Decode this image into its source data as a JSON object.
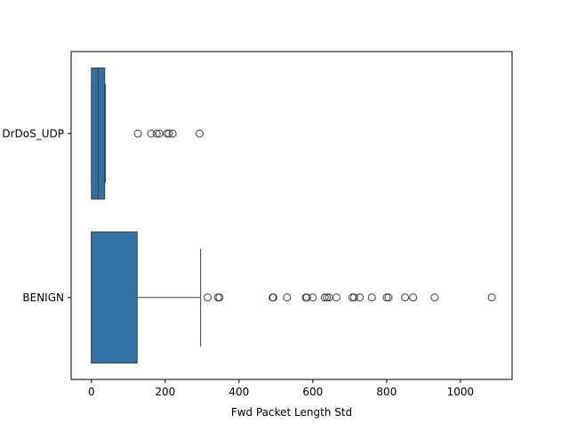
{
  "chart_data": {
    "type": "box",
    "orientation": "horizontal",
    "xlabel": "Fwd Packet Length Std",
    "ylabel": "",
    "xlim": [
      -55,
      1140
    ],
    "xticks": [
      0,
      200,
      400,
      600,
      800,
      1000
    ],
    "box_color": "#2f72a8",
    "categories": [
      {
        "name": "DrDoS_UDP",
        "min": 0,
        "q1": 0,
        "median": 18,
        "q3": 36,
        "max": 38,
        "outliers": [
          126,
          162,
          177,
          184,
          205,
          210,
          220,
          293
        ]
      },
      {
        "name": "BENIGN",
        "min": 0,
        "q1": 0,
        "median": 0,
        "q3": 124,
        "max": 296,
        "outliers": [
          315,
          343,
          347,
          491,
          493,
          530,
          581,
          584,
          600,
          632,
          638,
          644,
          664,
          707,
          712,
          727,
          760,
          800,
          805,
          850,
          872,
          930,
          1085
        ]
      }
    ]
  }
}
